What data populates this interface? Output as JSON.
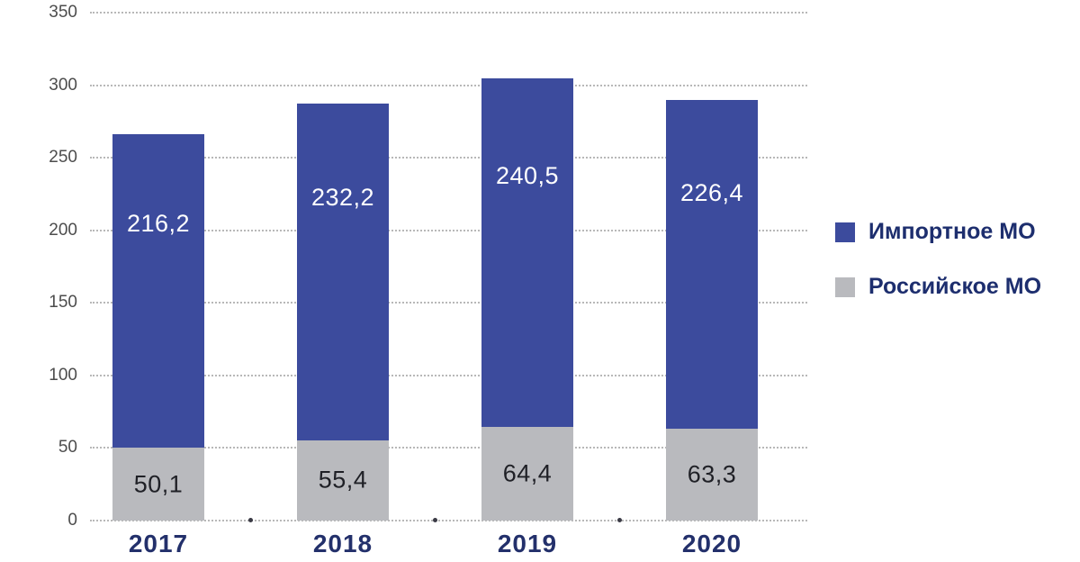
{
  "chart_data": {
    "type": "bar",
    "subtype": "stacked-vertical",
    "title": "",
    "categories": [
      "2017",
      "2018",
      "2019",
      "2020"
    ],
    "series": [
      {
        "name": "Российское МО",
        "color": "#b9babe",
        "text_color": "#1f2026",
        "values": [
          50.1,
          55.4,
          64.4,
          63.3
        ],
        "labels": [
          "50,1",
          "55,4",
          "64,4",
          "63,3"
        ]
      },
      {
        "name": "Импортное МО",
        "color": "#3c4b9d",
        "text_color": "#ffffff",
        "values": [
          216.2,
          232.2,
          240.5,
          226.4
        ],
        "labels": [
          "216,2",
          "232,2",
          "240,5",
          "226,4"
        ]
      }
    ],
    "totals": [
      266.3,
      287.6,
      304.9,
      289.7
    ],
    "ylim": [
      0,
      350
    ],
    "yticks": [
      "0",
      "50",
      "100",
      "150",
      "200",
      "250",
      "300",
      "350"
    ],
    "grid": "horizontal-dotted",
    "legend": {
      "position": "right",
      "items": [
        {
          "label": "Импортное МО",
          "color": "#3c4b9d"
        },
        {
          "label": "Российское МО",
          "color": "#b9babe"
        }
      ]
    }
  },
  "colors": {
    "background": "#ffffff",
    "gridline": "#b8b8b8",
    "axis_tick_text": "#4d4d4d",
    "category_text": "#23306b",
    "legend_text": "#1d2e6e"
  }
}
